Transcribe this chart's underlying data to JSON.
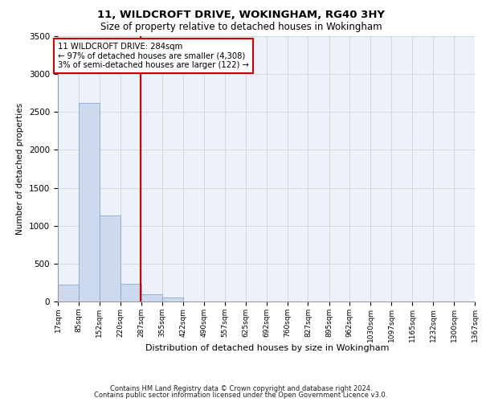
{
  "title1": "11, WILDCROFT DRIVE, WOKINGHAM, RG40 3HY",
  "title2": "Size of property relative to detached houses in Wokingham",
  "xlabel": "Distribution of detached houses by size in Wokingham",
  "ylabel": "Number of detached properties",
  "footnote1": "Contains HM Land Registry data © Crown copyright and database right 2024.",
  "footnote2": "Contains public sector information licensed under the Open Government Licence v3.0.",
  "bar_color": "#ccd9ee",
  "bar_edge_color": "#7a9dc8",
  "grid_color": "#d0d8e8",
  "annotation_box_color": "#cc0000",
  "vline_color": "#cc0000",
  "property_size": 284,
  "annotation_text": "11 WILDCROFT DRIVE: 284sqm\n← 97% of detached houses are smaller (4,308)\n3% of semi-detached houses are larger (122) →",
  "bin_edges": [
    17,
    85,
    152,
    220,
    287,
    355,
    422,
    490,
    557,
    625,
    692,
    760,
    827,
    895,
    962,
    1030,
    1097,
    1165,
    1232,
    1300,
    1367
  ],
  "bin_labels": [
    "17sqm",
    "85sqm",
    "152sqm",
    "220sqm",
    "287sqm",
    "355sqm",
    "422sqm",
    "490sqm",
    "557sqm",
    "625sqm",
    "692sqm",
    "760sqm",
    "827sqm",
    "895sqm",
    "962sqm",
    "1030sqm",
    "1097sqm",
    "1165sqm",
    "1232sqm",
    "1300sqm",
    "1367sqm"
  ],
  "counts": [
    225,
    2620,
    1130,
    235,
    100,
    55,
    0,
    0,
    0,
    0,
    0,
    0,
    0,
    0,
    0,
    0,
    0,
    0,
    0,
    0
  ],
  "ylim": [
    0,
    3500
  ],
  "yticks": [
    0,
    500,
    1000,
    1500,
    2000,
    2500,
    3000,
    3500
  ],
  "background_color": "#edf1f9"
}
